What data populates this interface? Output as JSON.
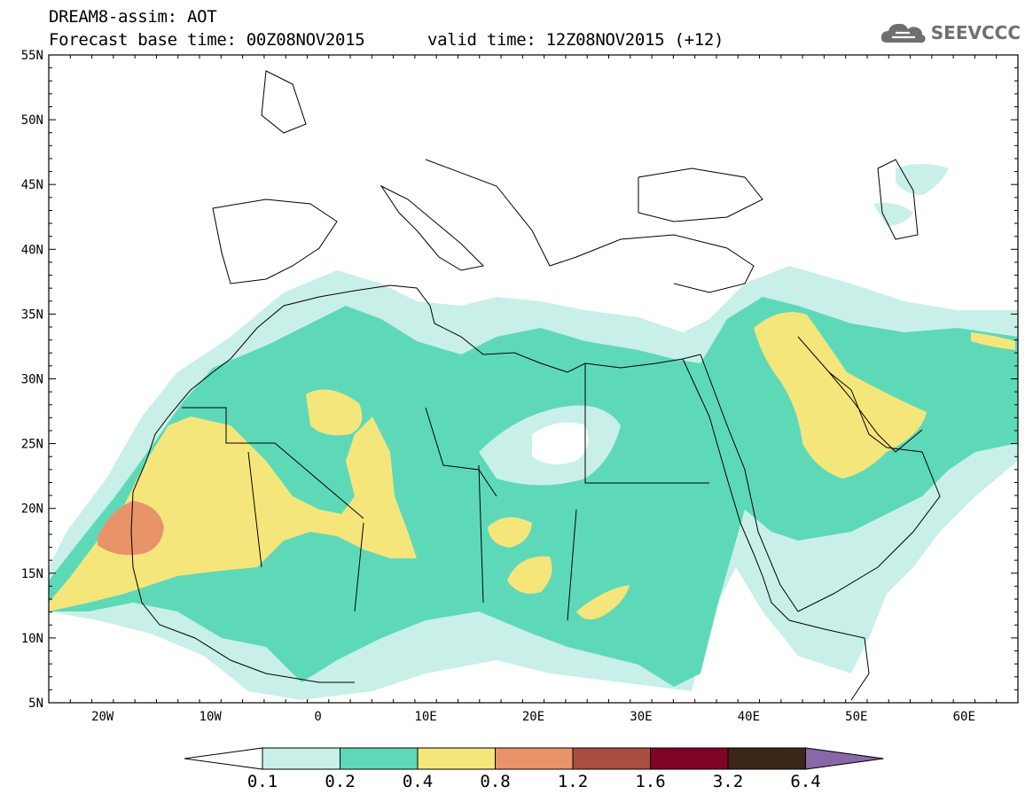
{
  "title": {
    "line1": "DREAM8-assim: AOT",
    "line2_left": "Forecast base time: 00Z08NOV2015",
    "line2_right": "valid time: 12Z08NOV2015 (+12)"
  },
  "logo": {
    "text": "SEEVCCC",
    "icon": "cloud-icon"
  },
  "map": {
    "lon_range": [
      -25,
      65
    ],
    "lat_range": [
      5,
      55
    ],
    "lat_labels": [
      "55N",
      "50N",
      "45N",
      "40N",
      "35N",
      "30N",
      "25N",
      "20N",
      "15N",
      "10N",
      "5N"
    ],
    "lon_labels": [
      "20W",
      "10W",
      "0",
      "10E",
      "20E",
      "30E",
      "40E",
      "50E",
      "60E"
    ]
  },
  "colorbar": {
    "colors": [
      "#c8f0e8",
      "#5ed9b8",
      "#f5e67c",
      "#e9936a",
      "#a84e40",
      "#7e0524",
      "#3b2617"
    ],
    "under_color": "#ffffff",
    "over_color": "#8a67a8",
    "labels": [
      "0.1",
      "0.2",
      "0.4",
      "0.8",
      "1.2",
      "1.6",
      "3.2",
      "6.4"
    ]
  }
}
